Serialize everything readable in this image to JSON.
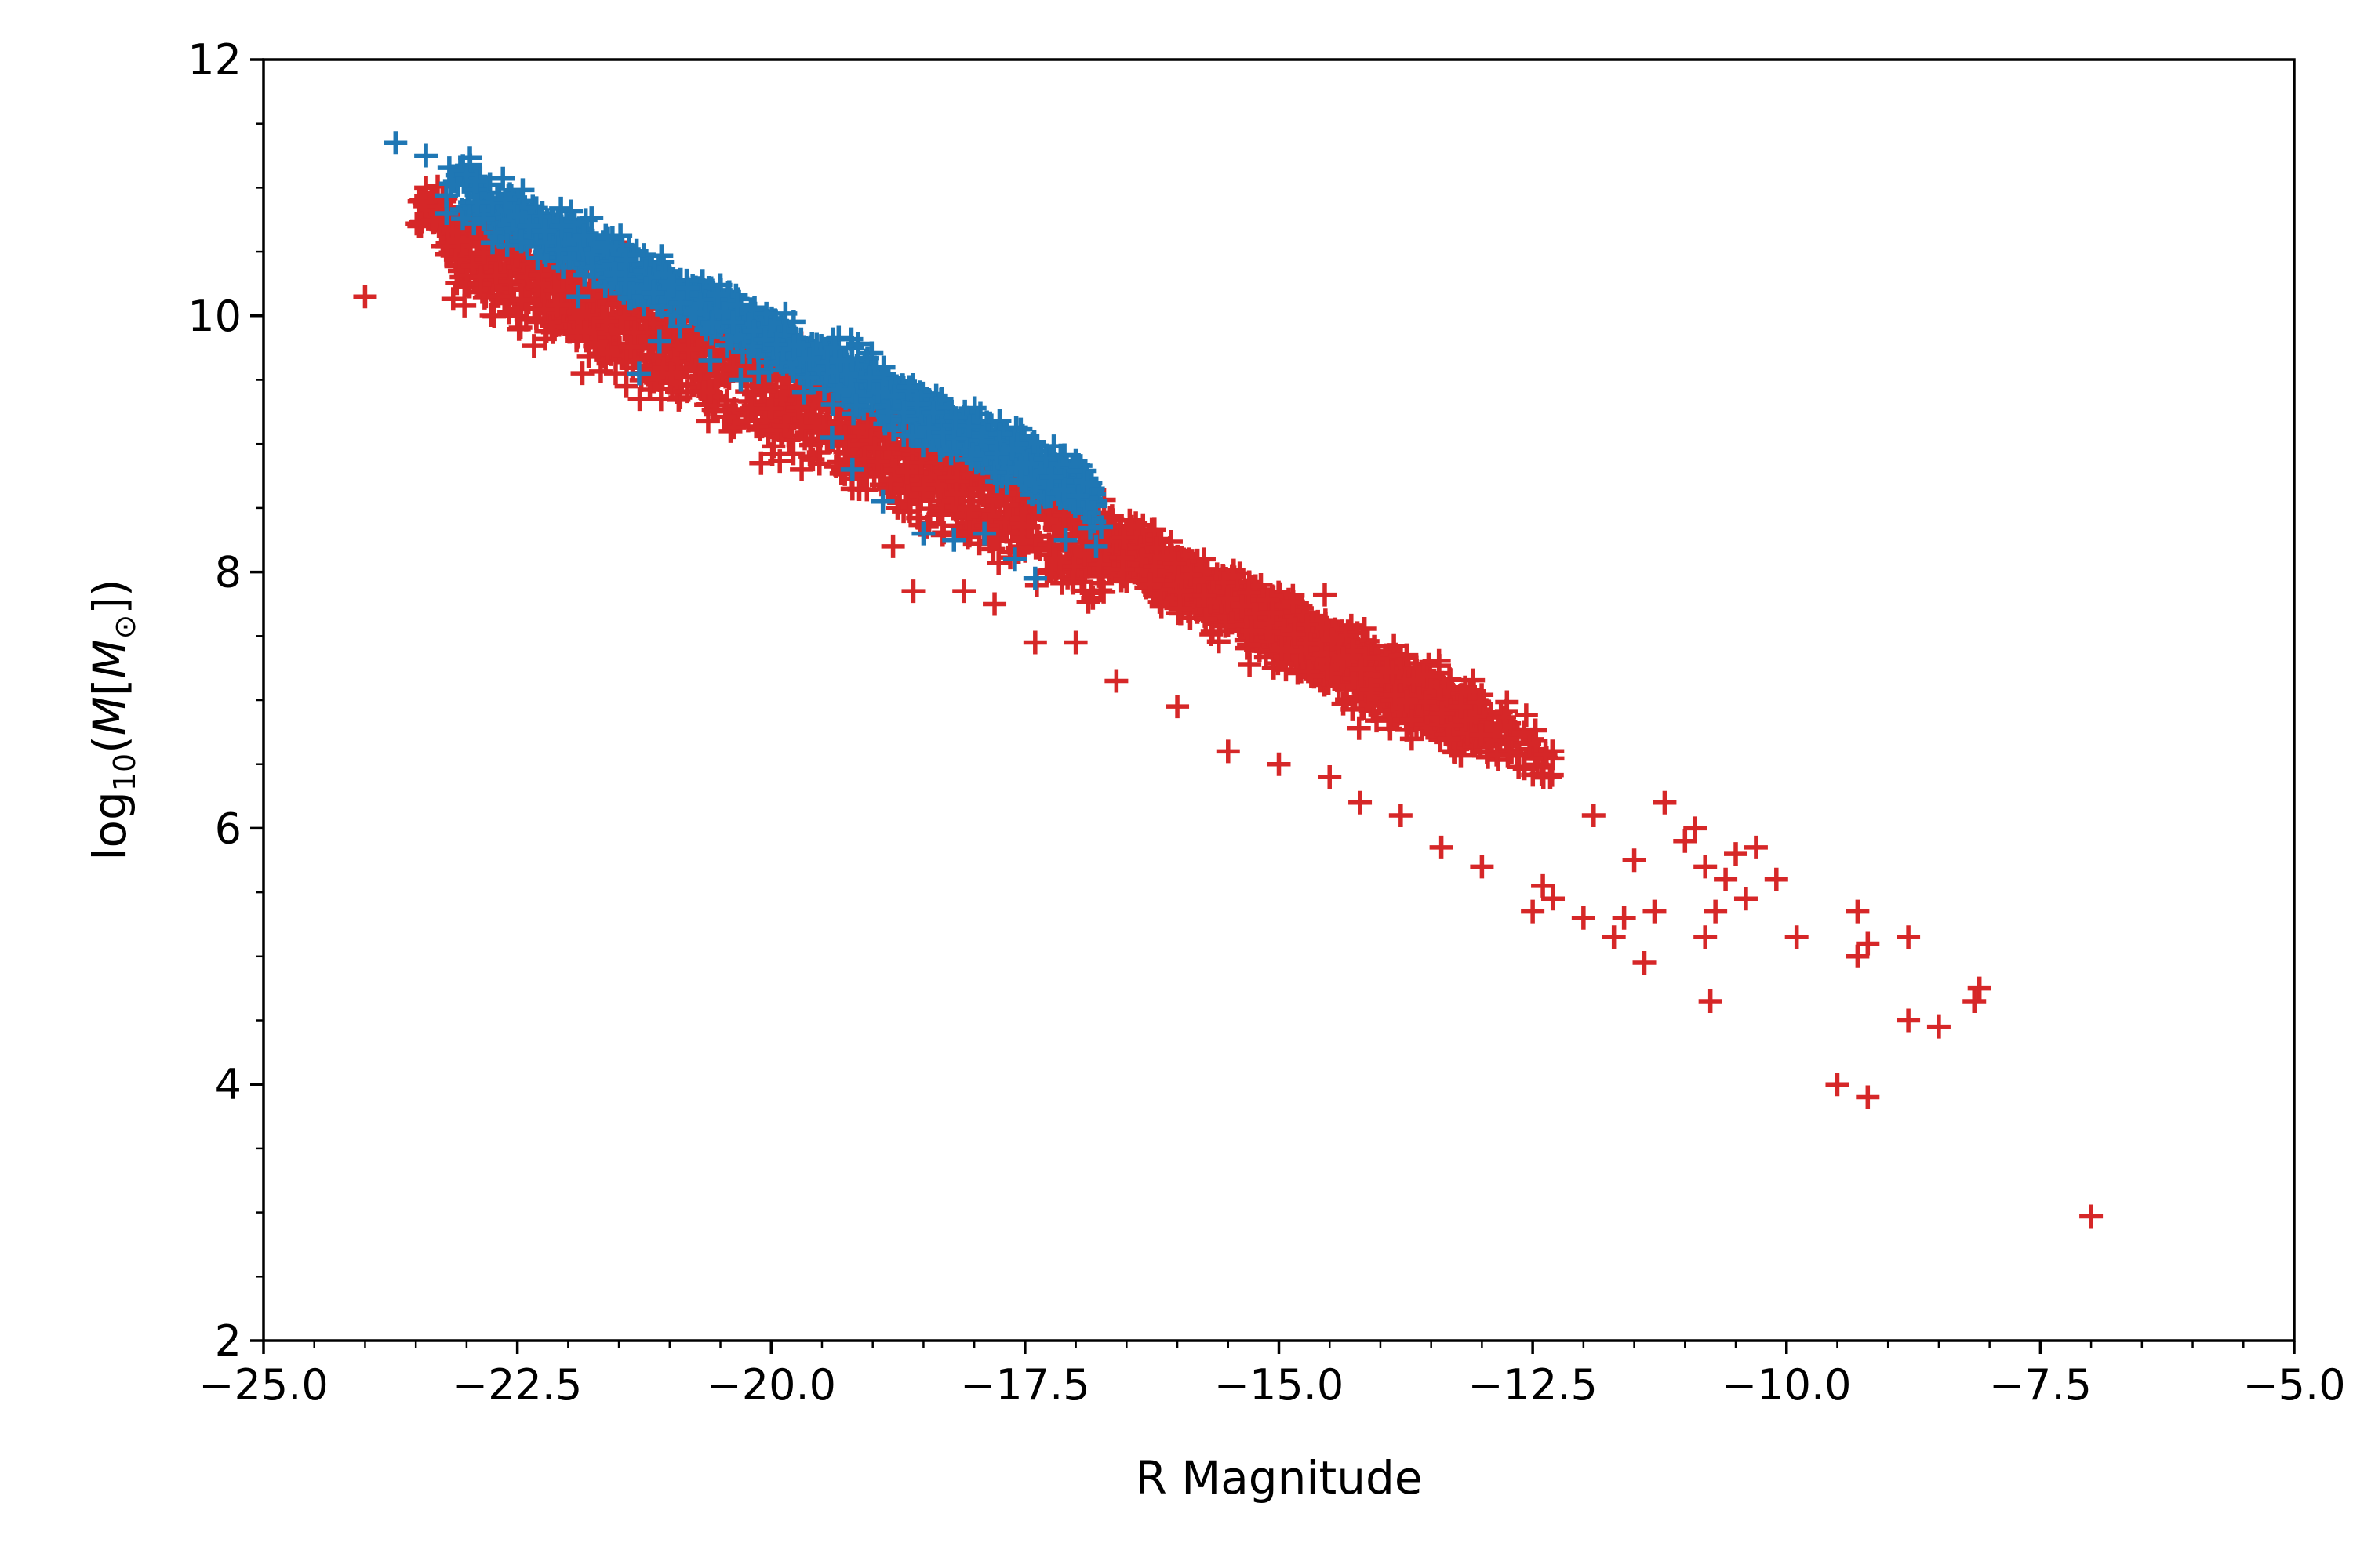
{
  "chart_data": {
    "type": "scatter",
    "title": "",
    "xlabel": "R Magnitude",
    "ylabel_parts": {
      "prefix": "log",
      "sub": "10",
      "open": "(",
      "m_var": "M",
      "bracket_open": "[",
      "m_sun": "M",
      "sun_sub": "⊙",
      "close": "])"
    },
    "xlim": [
      -25.0,
      -5.0
    ],
    "ylim": [
      2,
      12
    ],
    "x_ticks": [
      -25.0,
      -22.5,
      -20.0,
      -17.5,
      -15.0,
      -12.5,
      -10.0,
      -7.5,
      -5.0
    ],
    "x_tick_labels": [
      "−25.0",
      "−22.5",
      "−20.0",
      "−17.5",
      "−15.0",
      "−12.5",
      "−10.0",
      "−7.5",
      "−5.0"
    ],
    "y_ticks": [
      2,
      4,
      6,
      8,
      10,
      12
    ],
    "y_tick_labels": [
      "2",
      "4",
      "6",
      "8",
      "10",
      "12"
    ],
    "y_minor_step": 0.5,
    "x_minor_step": 0.5,
    "marker": "+",
    "grid": false,
    "legend": "none",
    "series": [
      {
        "name": "red",
        "color": "#d62728",
        "trend": {
          "slope": -0.388,
          "intercept": 1.75,
          "scatter_std": 0.12,
          "offset_below_blue": -0.28
        },
        "x_range_dense": [
          -23.5,
          -12.3
        ],
        "points": [
          [
            -24.0,
            10.15
          ],
          [
            -23.4,
            11.0
          ],
          [
            -23.2,
            10.85
          ],
          [
            -22.9,
            10.55
          ],
          [
            -22.7,
            10.4
          ],
          [
            -22.5,
            10.0
          ],
          [
            -22.1,
            9.95
          ],
          [
            -21.9,
            9.85
          ],
          [
            -21.3,
            9.65
          ],
          [
            -20.9,
            9.4
          ],
          [
            -20.4,
            9.1
          ],
          [
            -20.1,
            8.85
          ],
          [
            -19.7,
            8.8
          ],
          [
            -19.2,
            8.65
          ],
          [
            -18.8,
            8.2
          ],
          [
            -18.6,
            7.85
          ],
          [
            -18.1,
            7.85
          ],
          [
            -17.8,
            7.75
          ],
          [
            -17.4,
            7.45
          ],
          [
            -17.0,
            7.45
          ],
          [
            -16.6,
            7.15
          ],
          [
            -16.0,
            6.95
          ],
          [
            -15.5,
            6.6
          ],
          [
            -15.0,
            6.5
          ],
          [
            -14.5,
            6.4
          ],
          [
            -14.2,
            6.2
          ],
          [
            -13.8,
            6.1
          ],
          [
            -13.4,
            5.85
          ],
          [
            -13.0,
            5.7
          ],
          [
            -12.5,
            5.35
          ],
          [
            -12.4,
            5.55
          ],
          [
            -12.3,
            5.45
          ],
          [
            -12.0,
            5.3
          ],
          [
            -11.9,
            6.1
          ],
          [
            -11.7,
            5.15
          ],
          [
            -11.6,
            5.3
          ],
          [
            -11.5,
            5.75
          ],
          [
            -11.4,
            4.95
          ],
          [
            -11.3,
            5.35
          ],
          [
            -11.2,
            6.2
          ],
          [
            -11.0,
            5.9
          ],
          [
            -10.9,
            6.0
          ],
          [
            -10.8,
            5.7
          ],
          [
            -10.8,
            5.15
          ],
          [
            -10.75,
            4.65
          ],
          [
            -10.7,
            5.35
          ],
          [
            -10.6,
            5.6
          ],
          [
            -10.5,
            5.8
          ],
          [
            -10.4,
            5.45
          ],
          [
            -10.3,
            5.85
          ],
          [
            -10.1,
            5.6
          ],
          [
            -9.9,
            5.15
          ],
          [
            -9.5,
            4.0
          ],
          [
            -9.3,
            5.35
          ],
          [
            -9.3,
            5.0
          ],
          [
            -9.2,
            5.1
          ],
          [
            -9.2,
            3.9
          ],
          [
            -8.8,
            5.15
          ],
          [
            -8.8,
            4.5
          ],
          [
            -8.5,
            4.45
          ],
          [
            -8.15,
            4.65
          ],
          [
            -8.1,
            4.75
          ],
          [
            -7.0,
            2.97
          ]
        ]
      },
      {
        "name": "blue",
        "color": "#1f77b4",
        "trend": {
          "slope": -0.388,
          "intercept": 2.05,
          "scatter_std": 0.1
        },
        "x_range_dense": [
          -23.2,
          -16.8
        ],
        "points": [
          [
            -23.7,
            11.35
          ],
          [
            -23.4,
            11.25
          ],
          [
            -23.0,
            11.1
          ],
          [
            -22.9,
            11.05
          ],
          [
            -22.6,
            10.55
          ],
          [
            -22.3,
            10.45
          ],
          [
            -21.9,
            10.15
          ],
          [
            -21.3,
            9.55
          ],
          [
            -21.1,
            9.8
          ],
          [
            -20.6,
            9.65
          ],
          [
            -20.3,
            9.5
          ],
          [
            -19.4,
            9.05
          ],
          [
            -19.2,
            8.8
          ],
          [
            -18.9,
            8.55
          ],
          [
            -18.5,
            8.3
          ],
          [
            -18.2,
            8.25
          ],
          [
            -17.9,
            8.3
          ],
          [
            -17.6,
            8.1
          ],
          [
            -17.4,
            7.95
          ],
          [
            -17.1,
            8.25
          ],
          [
            -16.8,
            8.2
          ],
          [
            -16.75,
            8.35
          ]
        ]
      }
    ]
  }
}
